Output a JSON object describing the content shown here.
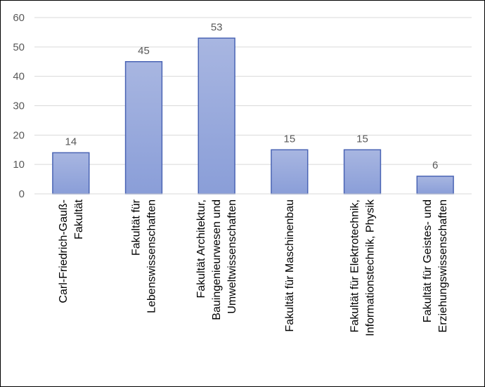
{
  "chart_data": {
    "type": "bar",
    "categories": [
      [
        "Carl-Friedrich-Gauß-",
        "Fakultät"
      ],
      [
        "Fakultät für",
        "Lebenswissenschaften"
      ],
      [
        "Fakultät Architektur,",
        "Bauingenieurwesen und",
        "Umweltwissenschaften"
      ],
      [
        "Fakultät für Maschinenbau"
      ],
      [
        "Fakultät für Elektrotechnik,",
        "Informationstechnik, Physik"
      ],
      [
        "Fakultät für Geistes- und",
        "Erziehungswissenschaften"
      ]
    ],
    "values": [
      14,
      45,
      53,
      15,
      15,
      6
    ],
    "data_labels": [
      "14",
      "45",
      "53",
      "15",
      "15",
      "6"
    ],
    "yticks": [
      "0",
      "10",
      "20",
      "30",
      "40",
      "50",
      "60"
    ],
    "ylim": [
      0,
      60
    ],
    "grid": true,
    "legend": "none",
    "bar_fill": "#9aacdd",
    "bar_stroke": "#4a64b4"
  }
}
